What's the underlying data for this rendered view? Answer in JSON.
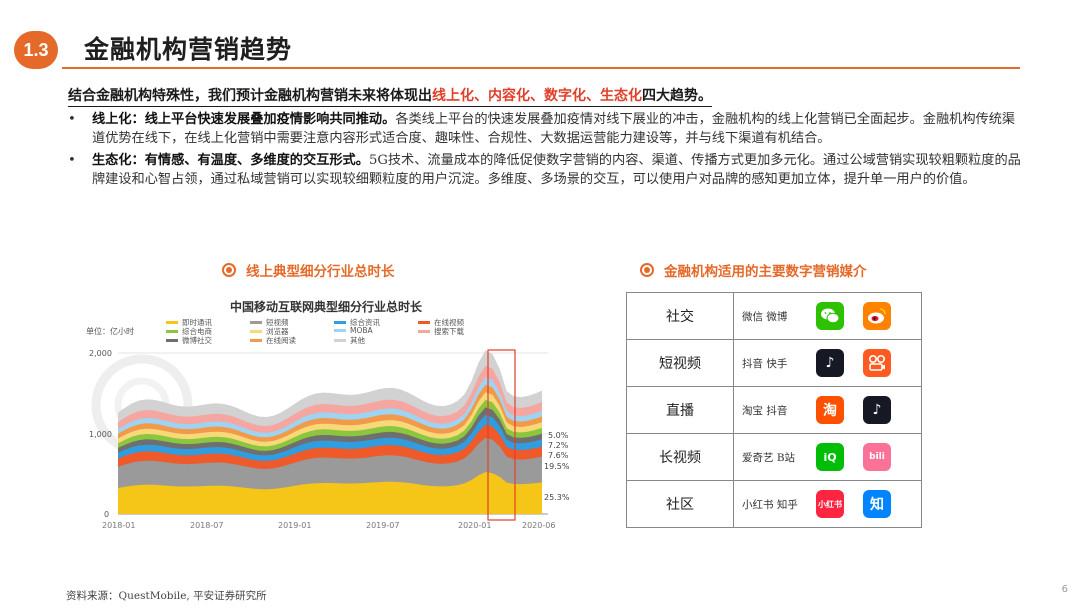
{
  "header": {
    "section_number": "1.3",
    "title": "金融机构营销趋势"
  },
  "summary": {
    "prefix": "结合金融机构特殊性，我们预计金融机构营销未来将体现出",
    "highlight": "线上化、内容化、数字化、生态化",
    "suffix": "四大趋势。"
  },
  "bullets": [
    {
      "bullet": "•",
      "bold": "线上化：线上平台快速发展叠加疫情影响共同推动。",
      "text": "各类线上平台的快速发展叠加疫情对线下展业的冲击，金融机构的线上化营销已全面起步。金融机构传统渠道优势在线下，在线上化营销中需要注意内容形式适合度、趣味性、合规性、大数据运营能力建设等，并与线下渠道有机结合。"
    },
    {
      "bullet": "•",
      "bold": "生态化：有情感、有温度、多维度的交互形式。",
      "text": "5G技术、流量成本的降低促使数字营销的内容、渠道、传播方式更加多元化。通过公域营销实现较粗颗粒度的品牌建设和心智占领，通过私域营销可以实现较细颗粒度的用户沉淀。多维度、多场景的交互，可以使用户对品牌的感知更加立体，提升单一用户的价值。"
    }
  ],
  "left_section": {
    "title": "线上典型细分行业总时长"
  },
  "right_section": {
    "title": "金融机构适用的主要数字营销媒介"
  },
  "chart_data": {
    "type": "area",
    "title": "中国移动互联网典型细分行业总时长",
    "unit": "单位：亿小时",
    "x": [
      "2018-01",
      "2018-07",
      "2019-01",
      "2019-07",
      "2020-01",
      "2020-06"
    ],
    "ylim": [
      0,
      2000
    ],
    "yticks": [
      "0",
      "1,000",
      "2,000"
    ],
    "series": [
      {
        "name": "即时通讯",
        "color": "#f5c518"
      },
      {
        "name": "短视频",
        "color": "#9a9a9a"
      },
      {
        "name": "综合资讯",
        "color": "#2f9de0"
      },
      {
        "name": "在线视频",
        "color": "#ee5a2a"
      },
      {
        "name": "综合电商",
        "color": "#8cc63e"
      },
      {
        "name": "浏览器",
        "color": "#f7d97a"
      },
      {
        "name": "MOBA",
        "color": "#9ed3f2"
      },
      {
        "name": "搜索下载",
        "color": "#f6a6a0"
      },
      {
        "name": "微博社交",
        "color": "#6f6f6f"
      },
      {
        "name": "在线阅读",
        "color": "#f29a4a"
      },
      {
        "name": "其他",
        "color": "#d2d2d2"
      }
    ],
    "annotations": [
      "5.0%",
      "7.2%",
      "7.6%",
      "19.5%",
      "25.3%"
    ]
  },
  "media_table": {
    "rows": [
      {
        "category": "社交",
        "platforms": "微信 微博",
        "icons": [
          {
            "name": "wechat-icon",
            "glyph": "",
            "bg": "#2dc100"
          },
          {
            "name": "weibo-icon",
            "glyph": "",
            "bg": "#ff8200"
          }
        ]
      },
      {
        "category": "短视频",
        "platforms": "抖音 快手",
        "icons": [
          {
            "name": "douyin-icon",
            "glyph": "♪",
            "bg": "#161823"
          },
          {
            "name": "kuaishou-icon",
            "glyph": "",
            "bg": "#ff5a1f"
          }
        ]
      },
      {
        "category": "直播",
        "platforms": "淘宝 抖音",
        "icons": [
          {
            "name": "taobao-icon",
            "glyph": "淘",
            "bg": "#ff5000"
          },
          {
            "name": "douyin-icon",
            "glyph": "♪",
            "bg": "#161823"
          }
        ]
      },
      {
        "category": "长视频",
        "platforms": "爱奇艺 B站",
        "icons": [
          {
            "name": "iqiyi-icon",
            "glyph": "iQ",
            "bg": "#00be06"
          },
          {
            "name": "bilibili-icon",
            "glyph": "bili",
            "bg": "#fb7299"
          }
        ]
      },
      {
        "category": "社区",
        "platforms": "小红书 知乎",
        "icons": [
          {
            "name": "xiaohongshu-icon",
            "glyph": "小红书",
            "bg": "#ff2442"
          },
          {
            "name": "zhihu-icon",
            "glyph": "知",
            "bg": "#0084ff"
          }
        ]
      }
    ]
  },
  "footer": {
    "source": "资料来源：QuestMobile, 平安证券研究所",
    "page_number": "6"
  }
}
